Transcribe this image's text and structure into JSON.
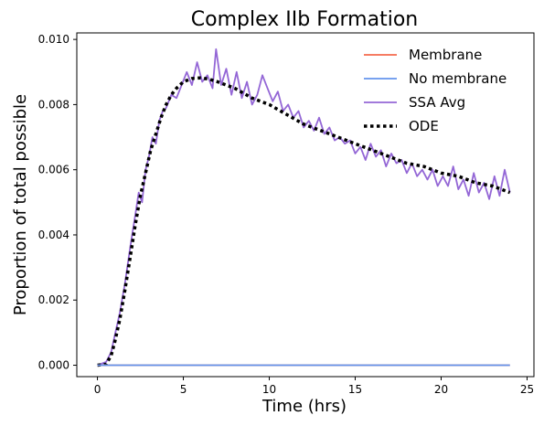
{
  "chart_data": {
    "type": "line",
    "title": "Complex IIb Formation",
    "xlabel": "Time (hrs)",
    "ylabel": "Proportion of total possible",
    "xlim": [
      -1.2,
      25.4
    ],
    "ylim": [
      -0.00035,
      0.0102
    ],
    "xticks": [
      0,
      5,
      10,
      15,
      20,
      25
    ],
    "xtick_labels": [
      "0",
      "5",
      "10",
      "15",
      "20",
      "25"
    ],
    "yticks": [
      0.0,
      0.002,
      0.004,
      0.006,
      0.008,
      0.01
    ],
    "ytick_labels": [
      "0.000",
      "0.002",
      "0.004",
      "0.006",
      "0.008",
      "0.010"
    ],
    "grid": false,
    "legend_position": "top-right",
    "series": [
      {
        "name": "Membrane",
        "color": "#f4694d",
        "style": "solid",
        "x": [
          0,
          24
        ],
        "y": [
          0,
          0
        ]
      },
      {
        "name": "No membrane",
        "color": "#6495ed",
        "style": "solid",
        "x": [
          0,
          24
        ],
        "y": [
          0,
          0
        ]
      },
      {
        "name": "SSA Avg",
        "color": "#9467d6",
        "style": "solid",
        "x": [
          0,
          0.5,
          0.8,
          1.0,
          1.3,
          1.6,
          1.9,
          2.2,
          2.4,
          2.6,
          2.8,
          3.0,
          3.2,
          3.4,
          3.6,
          3.8,
          4.0,
          4.3,
          4.6,
          4.9,
          5.2,
          5.5,
          5.8,
          6.1,
          6.4,
          6.7,
          6.9,
          7.2,
          7.5,
          7.8,
          8.1,
          8.4,
          8.7,
          9.0,
          9.3,
          9.6,
          9.9,
          10.2,
          10.5,
          10.8,
          11.1,
          11.4,
          11.7,
          12.0,
          12.3,
          12.6,
          12.9,
          13.2,
          13.5,
          13.8,
          14.1,
          14.4,
          14.7,
          15.0,
          15.3,
          15.6,
          15.9,
          16.2,
          16.5,
          16.8,
          17.1,
          17.4,
          17.7,
          18.0,
          18.3,
          18.6,
          18.9,
          19.2,
          19.5,
          19.8,
          20.1,
          20.4,
          20.7,
          21.0,
          21.3,
          21.6,
          21.9,
          22.2,
          22.5,
          22.8,
          23.1,
          23.4,
          23.7,
          24.0
        ],
        "y": [
          0.0,
          0.0001,
          0.0004,
          0.0009,
          0.0016,
          0.0025,
          0.0036,
          0.0046,
          0.0053,
          0.005,
          0.006,
          0.0064,
          0.007,
          0.0068,
          0.0075,
          0.0078,
          0.0079,
          0.0083,
          0.0082,
          0.0086,
          0.009,
          0.0086,
          0.0093,
          0.0087,
          0.0089,
          0.0085,
          0.0097,
          0.0086,
          0.0091,
          0.0083,
          0.009,
          0.0082,
          0.0087,
          0.008,
          0.0083,
          0.0089,
          0.0085,
          0.0081,
          0.0084,
          0.0078,
          0.008,
          0.0076,
          0.0078,
          0.0073,
          0.0075,
          0.0072,
          0.0076,
          0.0071,
          0.0073,
          0.0069,
          0.007,
          0.0068,
          0.0069,
          0.0065,
          0.0067,
          0.0063,
          0.0068,
          0.0064,
          0.0066,
          0.0061,
          0.0065,
          0.0062,
          0.0063,
          0.0059,
          0.0062,
          0.0058,
          0.006,
          0.0057,
          0.006,
          0.0055,
          0.0058,
          0.0055,
          0.0061,
          0.0054,
          0.0057,
          0.0052,
          0.0059,
          0.0053,
          0.0056,
          0.0051,
          0.0058,
          0.0052,
          0.006,
          0.0053
        ]
      },
      {
        "name": "ODE",
        "color": "#000000",
        "style": "dotted",
        "x": [
          0,
          0.5,
          0.8,
          1.0,
          1.3,
          1.6,
          1.9,
          2.2,
          2.5,
          2.8,
          3.1,
          3.4,
          3.7,
          4.0,
          4.3,
          4.6,
          5.0,
          5.5,
          6.0,
          6.5,
          7.0,
          8.0,
          9.0,
          10.0,
          11.0,
          12.0,
          13.0,
          14.0,
          15.0,
          16.0,
          17.0,
          18.0,
          19.0,
          20.0,
          21.0,
          22.0,
          23.0,
          24.0
        ],
        "y": [
          0.0,
          3e-05,
          0.0003,
          0.0007,
          0.0014,
          0.0023,
          0.0033,
          0.0043,
          0.0052,
          0.0059,
          0.0066,
          0.0071,
          0.0076,
          0.008,
          0.0083,
          0.0085,
          0.0087,
          0.0088,
          0.00882,
          0.00878,
          0.0087,
          0.0085,
          0.0082,
          0.008,
          0.0077,
          0.0074,
          0.0072,
          0.007,
          0.0068,
          0.0066,
          0.0064,
          0.0062,
          0.0061,
          0.0059,
          0.0058,
          0.0056,
          0.0055,
          0.0053
        ]
      }
    ]
  }
}
